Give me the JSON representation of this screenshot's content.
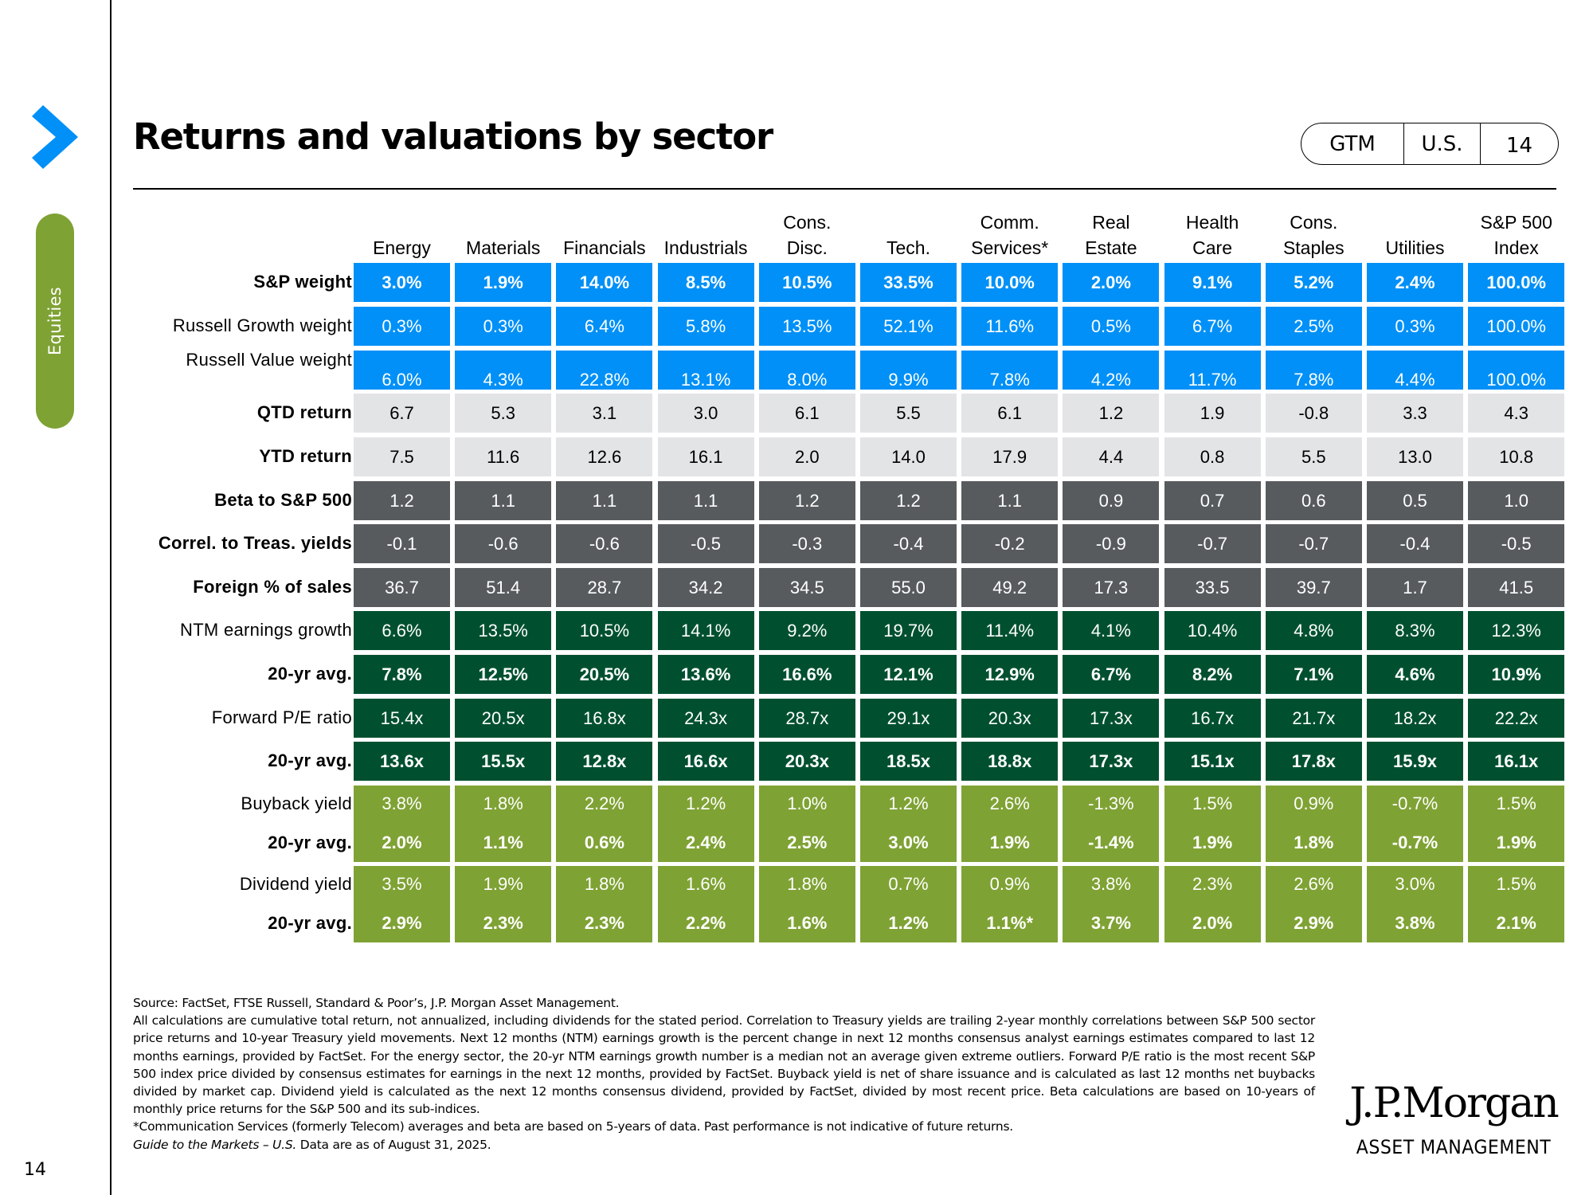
{
  "header": {
    "title": "Returns and valuations by sector",
    "badge": {
      "series": "GTM",
      "region": "U.S.",
      "page": "14"
    },
    "section_tab": "Equities",
    "page_number": "14"
  },
  "colors": {
    "accent_blue": "#0090f7",
    "light_gray": "#e3e4e6",
    "dark_gray": "#585b5e",
    "dark_green": "#005030",
    "light_green": "#7fa234"
  },
  "table": {
    "columns": [
      [
        "",
        "Energy"
      ],
      [
        "",
        "Materials"
      ],
      [
        "",
        "Financials"
      ],
      [
        "",
        "Industrials"
      ],
      [
        "Cons.",
        "Disc."
      ],
      [
        "",
        "Tech."
      ],
      [
        "Comm.",
        "Services*"
      ],
      [
        "Real",
        "Estate"
      ],
      [
        "Health",
        "Care"
      ],
      [
        "Cons.",
        "Staples"
      ],
      [
        "",
        "Utilities"
      ],
      [
        "S&P 500",
        "Index"
      ]
    ],
    "rows": [
      {
        "label": "S&P weight",
        "style": "blue",
        "bold": true,
        "values": [
          "3.0%",
          "1.9%",
          "14.0%",
          "8.5%",
          "10.5%",
          "33.5%",
          "10.0%",
          "2.0%",
          "9.1%",
          "5.2%",
          "2.4%",
          "100.0%"
        ]
      },
      {
        "label": "Russell Growth weight",
        "style": "blue",
        "bold": false,
        "values": [
          "0.3%",
          "0.3%",
          "6.4%",
          "5.8%",
          "13.5%",
          "52.1%",
          "11.6%",
          "0.5%",
          "6.7%",
          "2.5%",
          "0.3%",
          "100.0%"
        ]
      },
      {
        "label": "Russell Value weight",
        "style": "blue",
        "bold": false,
        "values": [
          "6.0%",
          "4.3%",
          "22.8%",
          "13.1%",
          "8.0%",
          "9.9%",
          "7.8%",
          "4.2%",
          "11.7%",
          "7.8%",
          "4.4%",
          "100.0%"
        ]
      },
      {
        "label": "QTD return",
        "style": "lgray",
        "bold": true,
        "values": [
          "6.7",
          "5.3",
          "3.1",
          "3.0",
          "6.1",
          "5.5",
          "6.1",
          "1.2",
          "1.9",
          "-0.8",
          "3.3",
          "4.3"
        ]
      },
      {
        "label": "YTD return",
        "style": "lgray",
        "bold": true,
        "values": [
          "7.5",
          "11.6",
          "12.6",
          "16.1",
          "2.0",
          "14.0",
          "17.9",
          "4.4",
          "0.8",
          "5.5",
          "13.0",
          "10.8"
        ]
      },
      {
        "label": "Beta to S&P 500",
        "style": "dgray",
        "bold": true,
        "values": [
          "1.2",
          "1.1",
          "1.1",
          "1.1",
          "1.2",
          "1.2",
          "1.1",
          "0.9",
          "0.7",
          "0.6",
          "0.5",
          "1.0"
        ]
      },
      {
        "label": "Correl. to Treas. yields",
        "style": "dgray",
        "bold": true,
        "values": [
          "-0.1",
          "-0.6",
          "-0.6",
          "-0.5",
          "-0.3",
          "-0.4",
          "-0.2",
          "-0.9",
          "-0.7",
          "-0.7",
          "-0.4",
          "-0.5"
        ]
      },
      {
        "label": "Foreign % of sales",
        "style": "dgray",
        "bold": true,
        "values": [
          "36.7",
          "51.4",
          "28.7",
          "34.2",
          "34.5",
          "55.0",
          "49.2",
          "17.3",
          "33.5",
          "39.7",
          "1.7",
          "41.5"
        ]
      },
      {
        "label": "NTM earnings growth",
        "style": "dgreen",
        "bold": false,
        "values": [
          "6.6%",
          "13.5%",
          "10.5%",
          "14.1%",
          "9.2%",
          "19.7%",
          "11.4%",
          "4.1%",
          "10.4%",
          "4.8%",
          "8.3%",
          "12.3%"
        ]
      },
      {
        "label": "20-yr avg.",
        "style": "dgreen",
        "bold": true,
        "values": [
          "7.8%",
          "12.5%",
          "20.5%",
          "13.6%",
          "16.6%",
          "12.1%",
          "12.9%",
          "6.7%",
          "8.2%",
          "7.1%",
          "4.6%",
          "10.9%"
        ]
      },
      {
        "label": "Forward P/E ratio",
        "style": "dgreen",
        "bold": false,
        "values": [
          "15.4x",
          "20.5x",
          "16.8x",
          "24.3x",
          "28.7x",
          "29.1x",
          "20.3x",
          "17.3x",
          "16.7x",
          "21.7x",
          "18.2x",
          "22.2x"
        ]
      },
      {
        "label": "20-yr avg.",
        "style": "dgreen",
        "bold": true,
        "values": [
          "13.6x",
          "15.5x",
          "12.8x",
          "16.6x",
          "20.3x",
          "18.5x",
          "18.8x",
          "17.3x",
          "15.1x",
          "17.8x",
          "15.9x",
          "16.1x"
        ]
      }
    ],
    "merged_rows": [
      {
        "label": "Buyback yield",
        "avg_label": "20-yr avg.",
        "style": "lgreen",
        "values": [
          "3.8%",
          "1.8%",
          "2.2%",
          "1.2%",
          "1.0%",
          "1.2%",
          "2.6%",
          "-1.3%",
          "1.5%",
          "0.9%",
          "-0.7%",
          "1.5%"
        ],
        "avg_values": [
          "2.0%",
          "1.1%",
          "0.6%",
          "2.4%",
          "2.5%",
          "3.0%",
          "1.9%",
          "-1.4%",
          "1.9%",
          "1.8%",
          "-0.7%",
          "1.9%"
        ]
      },
      {
        "label": "Dividend yield",
        "avg_label": "20-yr avg.",
        "style": "lgreen",
        "values": [
          "3.5%",
          "1.9%",
          "1.8%",
          "1.6%",
          "1.8%",
          "0.7%",
          "0.9%",
          "3.8%",
          "2.3%",
          "2.6%",
          "3.0%",
          "1.5%"
        ],
        "avg_values": [
          "2.9%",
          "2.3%",
          "2.3%",
          "2.2%",
          "1.6%",
          "1.2%",
          "1.1%*",
          "3.7%",
          "2.0%",
          "2.9%",
          "3.8%",
          "2.1%"
        ]
      }
    ]
  },
  "footnotes": {
    "source": "Source: FactSet, FTSE Russell, Standard & Poor’s, J.P. Morgan Asset Management.",
    "body": "All calculations are cumulative total return, not annualized, including dividends for the stated period. Correlation to Treasury yields are trailing 2-year monthly correlations between S&P 500 sector price returns and 10-year Treasury yield movements. Next 12 months (NTM) earnings growth is the percent change in next 12 months consensus analyst earnings estimates compared to last 12 months earnings, provided by FactSet. For the energy sector, the 20-yr NTM earnings growth number is a median not an average given extreme outliers. Forward P/E ratio is the most recent S&P 500 index price divided by consensus estimates for earnings in the next 12 months, provided by FactSet. Buyback yield is net of share issuance and is calculated as last 12 months net buybacks divided by market cap. Dividend yield is calculated as the next 12 months consensus dividend, provided by FactSet, divided by most recent price. Beta calculations are based on 10-years of monthly price returns for the S&P 500 and its sub-indices.",
    "asterisk_note": "*Communication Services (formerly Telecom) averages and beta are based on 5-years of data. Past performance is not indicative of future returns.",
    "guide_title": "Guide to the Markets – U.S.",
    "as_of": " Data are as of August 31, 2025."
  },
  "logo": {
    "name": "J.P.Morgan",
    "tagline": "ASSET MANAGEMENT"
  }
}
